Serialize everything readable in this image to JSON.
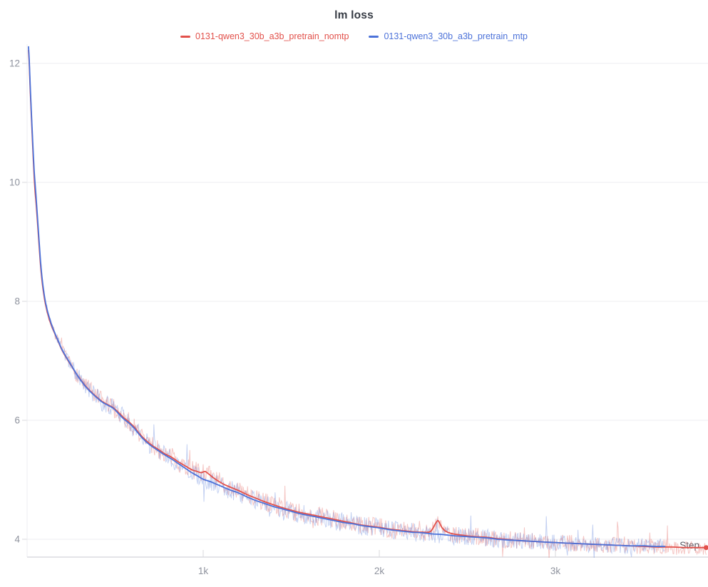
{
  "title": "lm loss",
  "legend": {
    "items": [
      {
        "label": "0131-qwen3_30b_a3b_pretrain_nomtp",
        "color": "#e2514b"
      },
      {
        "label": "0131-qwen3_30b_a3b_pretrain_mtp",
        "color": "#4c72d9"
      }
    ]
  },
  "axes": {
    "x_label": "Step",
    "x_ticks": [
      {
        "value": 1000,
        "label": "1k"
      },
      {
        "value": 2000,
        "label": "2k"
      },
      {
        "value": 3000,
        "label": "3k"
      }
    ],
    "y_ticks": [
      4,
      6,
      8,
      10,
      12
    ],
    "x_range": [
      0,
      3866
    ],
    "y_range_shown": [
      4,
      12
    ]
  },
  "chart_data": {
    "type": "line",
    "title": "lm loss",
    "xlabel": "Step",
    "ylabel": "lm loss",
    "grid": true,
    "legend_position": "top-center",
    "x_range": [
      0,
      3866
    ],
    "ylim_gridlines": [
      4,
      12
    ],
    "series": [
      {
        "name": "0131-qwen3_30b_a3b_pretrain_nomtp",
        "color": "#e2514b",
        "end_dot": true,
        "points": [
          [
            8,
            12.22
          ],
          [
            12,
            12.0
          ],
          [
            18,
            11.55
          ],
          [
            25,
            11.05
          ],
          [
            32,
            10.6
          ],
          [
            40,
            10.1
          ],
          [
            46,
            9.82
          ],
          [
            52,
            9.62
          ],
          [
            58,
            9.38
          ],
          [
            64,
            9.12
          ],
          [
            72,
            8.78
          ],
          [
            80,
            8.48
          ],
          [
            90,
            8.22
          ],
          [
            100,
            8.02
          ],
          [
            112,
            7.85
          ],
          [
            126,
            7.7
          ],
          [
            142,
            7.56
          ],
          [
            160,
            7.44
          ],
          [
            180,
            7.3
          ],
          [
            200,
            7.17
          ],
          [
            225,
            7.04
          ],
          [
            250,
            6.92
          ],
          [
            280,
            6.78
          ],
          [
            310,
            6.66
          ],
          [
            340,
            6.55
          ],
          [
            370,
            6.46
          ],
          [
            400,
            6.38
          ],
          [
            430,
            6.31
          ],
          [
            460,
            6.26
          ],
          [
            490,
            6.21
          ],
          [
            520,
            6.13
          ],
          [
            550,
            6.04
          ],
          [
            580,
            5.97
          ],
          [
            610,
            5.88
          ],
          [
            640,
            5.77
          ],
          [
            665,
            5.69
          ],
          [
            700,
            5.6
          ],
          [
            740,
            5.52
          ],
          [
            780,
            5.44
          ],
          [
            820,
            5.38
          ],
          [
            860,
            5.3
          ],
          [
            900,
            5.23
          ],
          [
            935,
            5.17
          ],
          [
            965,
            5.14
          ],
          [
            990,
            5.12
          ],
          [
            1010,
            5.14
          ],
          [
            1030,
            5.1
          ],
          [
            1060,
            5.03
          ],
          [
            1090,
            4.97
          ],
          [
            1120,
            4.92
          ],
          [
            1160,
            4.87
          ],
          [
            1200,
            4.82
          ],
          [
            1250,
            4.75
          ],
          [
            1300,
            4.69
          ],
          [
            1350,
            4.63
          ],
          [
            1400,
            4.58
          ],
          [
            1450,
            4.53
          ],
          [
            1500,
            4.49
          ],
          [
            1550,
            4.45
          ],
          [
            1600,
            4.42
          ],
          [
            1650,
            4.39
          ],
          [
            1700,
            4.36
          ],
          [
            1750,
            4.33
          ],
          [
            1800,
            4.3
          ],
          [
            1850,
            4.27
          ],
          [
            1900,
            4.24
          ],
          [
            1950,
            4.22
          ],
          [
            2000,
            4.2
          ],
          [
            2060,
            4.17
          ],
          [
            2120,
            4.15
          ],
          [
            2180,
            4.13
          ],
          [
            2240,
            4.12
          ],
          [
            2290,
            4.13
          ],
          [
            2320,
            4.27
          ],
          [
            2335,
            4.31
          ],
          [
            2355,
            4.2
          ],
          [
            2380,
            4.13
          ],
          [
            2420,
            4.09
          ],
          [
            2470,
            4.07
          ],
          [
            2520,
            4.05
          ],
          [
            2570,
            4.04
          ],
          [
            2620,
            4.03
          ],
          [
            2670,
            4.01
          ],
          [
            2720,
            4.0
          ],
          [
            2780,
            3.98
          ],
          [
            2840,
            3.97
          ],
          [
            2900,
            3.96
          ],
          [
            2960,
            3.95
          ],
          [
            3030,
            3.94
          ],
          [
            3100,
            3.93
          ],
          [
            3180,
            3.92
          ],
          [
            3260,
            3.91
          ],
          [
            3340,
            3.9
          ],
          [
            3420,
            3.89
          ],
          [
            3500,
            3.88
          ],
          [
            3580,
            3.87
          ],
          [
            3660,
            3.87
          ],
          [
            3740,
            3.86
          ],
          [
            3800,
            3.86
          ],
          [
            3856,
            3.86
          ]
        ]
      },
      {
        "name": "0131-qwen3_30b_a3b_pretrain_mtp",
        "color": "#4c72d9",
        "end_dot": false,
        "points": [
          [
            8,
            12.28
          ],
          [
            12,
            12.06
          ],
          [
            18,
            11.62
          ],
          [
            25,
            11.12
          ],
          [
            32,
            10.68
          ],
          [
            40,
            10.2
          ],
          [
            46,
            9.95
          ],
          [
            52,
            9.72
          ],
          [
            58,
            9.46
          ],
          [
            64,
            9.2
          ],
          [
            72,
            8.85
          ],
          [
            80,
            8.54
          ],
          [
            90,
            8.27
          ],
          [
            100,
            8.06
          ],
          [
            112,
            7.88
          ],
          [
            126,
            7.73
          ],
          [
            142,
            7.58
          ],
          [
            160,
            7.45
          ],
          [
            180,
            7.31
          ],
          [
            200,
            7.18
          ],
          [
            225,
            7.05
          ],
          [
            250,
            6.93
          ],
          [
            280,
            6.78
          ],
          [
            310,
            6.65
          ],
          [
            340,
            6.54
          ],
          [
            370,
            6.45
          ],
          [
            400,
            6.37
          ],
          [
            430,
            6.3
          ],
          [
            460,
            6.25
          ],
          [
            490,
            6.2
          ],
          [
            520,
            6.11
          ],
          [
            550,
            6.02
          ],
          [
            580,
            5.95
          ],
          [
            610,
            5.86
          ],
          [
            640,
            5.75
          ],
          [
            665,
            5.67
          ],
          [
            700,
            5.58
          ],
          [
            740,
            5.5
          ],
          [
            780,
            5.42
          ],
          [
            820,
            5.35
          ],
          [
            860,
            5.27
          ],
          [
            900,
            5.19
          ],
          [
            935,
            5.12
          ],
          [
            965,
            5.07
          ],
          [
            1000,
            5.01
          ],
          [
            1040,
            4.97
          ],
          [
            1080,
            4.92
          ],
          [
            1120,
            4.87
          ],
          [
            1160,
            4.82
          ],
          [
            1200,
            4.78
          ],
          [
            1250,
            4.71
          ],
          [
            1300,
            4.65
          ],
          [
            1350,
            4.6
          ],
          [
            1400,
            4.55
          ],
          [
            1450,
            4.51
          ],
          [
            1500,
            4.47
          ],
          [
            1550,
            4.43
          ],
          [
            1600,
            4.4
          ],
          [
            1650,
            4.37
          ],
          [
            1700,
            4.34
          ],
          [
            1750,
            4.31
          ],
          [
            1800,
            4.28
          ],
          [
            1850,
            4.26
          ],
          [
            1900,
            4.23
          ],
          [
            1950,
            4.21
          ],
          [
            2000,
            4.19
          ],
          [
            2060,
            4.16
          ],
          [
            2120,
            4.14
          ],
          [
            2180,
            4.12
          ],
          [
            2240,
            4.11
          ],
          [
            2300,
            4.09
          ],
          [
            2360,
            4.08
          ],
          [
            2420,
            4.06
          ],
          [
            2470,
            4.05
          ],
          [
            2520,
            4.04
          ],
          [
            2570,
            4.03
          ],
          [
            2620,
            4.02
          ],
          [
            2670,
            4.0
          ],
          [
            2720,
            3.99
          ],
          [
            2780,
            3.98
          ],
          [
            2840,
            3.97
          ],
          [
            2900,
            3.96
          ],
          [
            2960,
            3.95
          ],
          [
            3030,
            3.94
          ],
          [
            3100,
            3.93
          ],
          [
            3180,
            3.92
          ],
          [
            3260,
            3.91
          ],
          [
            3340,
            3.9
          ],
          [
            3420,
            3.89
          ],
          [
            3500,
            3.89
          ],
          [
            3560,
            3.88
          ],
          [
            3622,
            3.88
          ]
        ]
      }
    ]
  },
  "style": {
    "grid_color": "#ededf0",
    "axis_color": "#e4e4e8",
    "tick_color": "#d9dade",
    "tick_text_color": "#8f939e"
  }
}
